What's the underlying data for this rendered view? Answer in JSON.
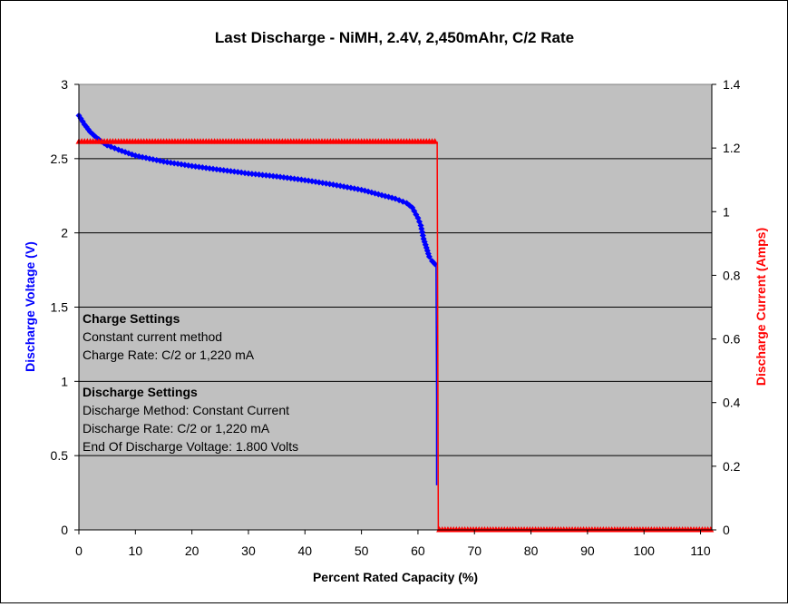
{
  "chart_data": {
    "type": "scatter",
    "title": "Last Discharge - NiMH, 2.4V, 2,450mAhr, C/2 Rate",
    "xlabel": "Percent Rated Capacity (%)",
    "ylabel_left": "Discharge Voltage (V)",
    "ylabel_right": "Discharge Current (Amps)",
    "xlim": [
      0,
      112
    ],
    "ylim_left": [
      0,
      3
    ],
    "ylim_right": [
      0,
      1.4
    ],
    "x_ticks": [
      "0",
      "10",
      "20",
      "30",
      "40",
      "50",
      "60",
      "70",
      "80",
      "90",
      "100",
      "110"
    ],
    "y_ticks_left": [
      "0",
      "0.5",
      "1",
      "1.5",
      "2",
      "2.5",
      "3"
    ],
    "y_ticks_right": [
      "0",
      "0.2",
      "0.4",
      "0.6",
      "0.8",
      "1",
      "1.2",
      "1.4"
    ],
    "grid": "horizontal",
    "legend": "none",
    "colors": {
      "plot_bg": "#c0c0c0",
      "voltage": "#0000ff",
      "current": "#ff0000"
    },
    "series": [
      {
        "axis": "left",
        "color": "#0000ff",
        "marker": "diamond",
        "x": [
          0,
          1,
          2,
          3,
          4,
          5,
          7,
          10,
          15,
          20,
          25,
          30,
          35,
          40,
          45,
          50,
          53,
          56,
          58,
          59,
          60,
          60.5,
          61,
          61.5,
          62,
          62.5,
          63
        ],
        "y": [
          2.79,
          2.73,
          2.68,
          2.645,
          2.615,
          2.59,
          2.56,
          2.52,
          2.48,
          2.45,
          2.425,
          2.4,
          2.38,
          2.355,
          2.325,
          2.29,
          2.26,
          2.23,
          2.2,
          2.17,
          2.1,
          2.05,
          1.96,
          1.9,
          1.84,
          1.81,
          1.79
        ]
      },
      {
        "axis": "left",
        "color": "#0000ff",
        "marker": "none",
        "x": [
          63.2,
          63.3,
          63.3
        ],
        "y": [
          1.79,
          0.9,
          0.3
        ]
      },
      {
        "axis": "right",
        "color": "#ff0000",
        "marker": "triangle",
        "x_start": 0,
        "x_end": 63.4,
        "x_step": 0.5,
        "y": 1.22
      },
      {
        "axis": "right",
        "color": "#ff0000",
        "marker": "none",
        "x": [
          63.4,
          63.6
        ],
        "y": [
          1.22,
          0
        ]
      },
      {
        "axis": "right",
        "color": "#ff0000",
        "marker": "triangle",
        "x_start": 63.8,
        "x_end": 112,
        "x_step": 0.5,
        "y": 0
      }
    ],
    "annotations": [
      {
        "heading": "Charge Settings",
        "lines": [
          "Constant current method",
          "Charge Rate: C/2 or 1,220 mA"
        ]
      },
      {
        "heading": "Discharge Settings",
        "lines": [
          "Discharge Method: Constant Current",
          "Discharge Rate: C/2 or 1,220 mA",
          "End Of Discharge Voltage: 1.800 Volts"
        ]
      }
    ]
  }
}
